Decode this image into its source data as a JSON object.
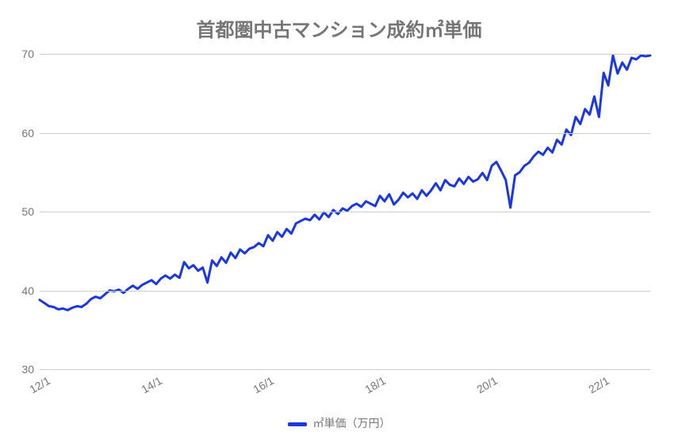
{
  "chart": {
    "type": "line",
    "title": "首都圏中古マンション成約㎡単価",
    "title_fontsize": 24,
    "title_color": "#757575",
    "background_color": "#ffffff",
    "grid_color": "#cccccc",
    "text_color": "#757575",
    "tick_fontsize": 14,
    "legend_fontsize": 14,
    "line_color": "#1a37e2",
    "line_width": 3,
    "ylim": [
      30,
      70
    ],
    "yticks": [
      30,
      40,
      50,
      60,
      70
    ],
    "xticks": [
      "12/1",
      "14/1",
      "16/1",
      "18/1",
      "20/1",
      "22/1"
    ],
    "xtick_positions": [
      0,
      24,
      48,
      72,
      96,
      120
    ],
    "series": {
      "label": "㎡単価（万円）",
      "x_start": 0,
      "x_step": 1,
      "values": [
        38.8,
        38.4,
        38.0,
        37.9,
        37.6,
        37.7,
        37.5,
        37.8,
        38.0,
        37.9,
        38.3,
        38.9,
        39.2,
        39.0,
        39.5,
        40.0,
        39.9,
        40.1,
        39.7,
        40.2,
        40.6,
        40.2,
        40.7,
        41.0,
        41.3,
        40.8,
        41.5,
        41.9,
        41.5,
        42.0,
        41.6,
        43.6,
        42.8,
        43.2,
        42.5,
        42.9,
        41.0,
        43.8,
        43.1,
        44.2,
        43.5,
        44.8,
        44.1,
        45.2,
        44.7,
        45.3,
        45.5,
        46.0,
        45.6,
        47.0,
        46.3,
        47.4,
        46.8,
        47.8,
        47.2,
        48.5,
        48.8,
        49.1,
        48.9,
        49.6,
        49.0,
        49.9,
        49.3,
        50.2,
        49.7,
        50.4,
        50.1,
        50.7,
        51.0,
        50.6,
        51.3,
        51.0,
        50.7,
        52.0,
        51.3,
        52.2,
        50.9,
        51.5,
        52.4,
        51.8,
        52.3,
        51.6,
        52.7,
        52.0,
        52.7,
        53.6,
        52.7,
        54.0,
        53.4,
        53.2,
        54.2,
        53.5,
        54.4,
        53.8,
        54.1,
        54.9,
        54.0,
        55.8,
        56.3,
        55.2,
        54.0,
        50.5,
        54.6,
        55.0,
        55.8,
        56.2,
        57.0,
        57.6,
        57.2,
        58.1,
        57.5,
        59.1,
        58.5,
        60.4,
        59.7,
        62.0,
        61.1,
        63.0,
        62.3,
        64.6,
        62.0,
        67.6,
        66.0,
        69.8,
        67.5,
        68.9,
        68.0,
        69.5,
        69.3,
        69.8,
        69.7,
        69.8
      ]
    }
  }
}
